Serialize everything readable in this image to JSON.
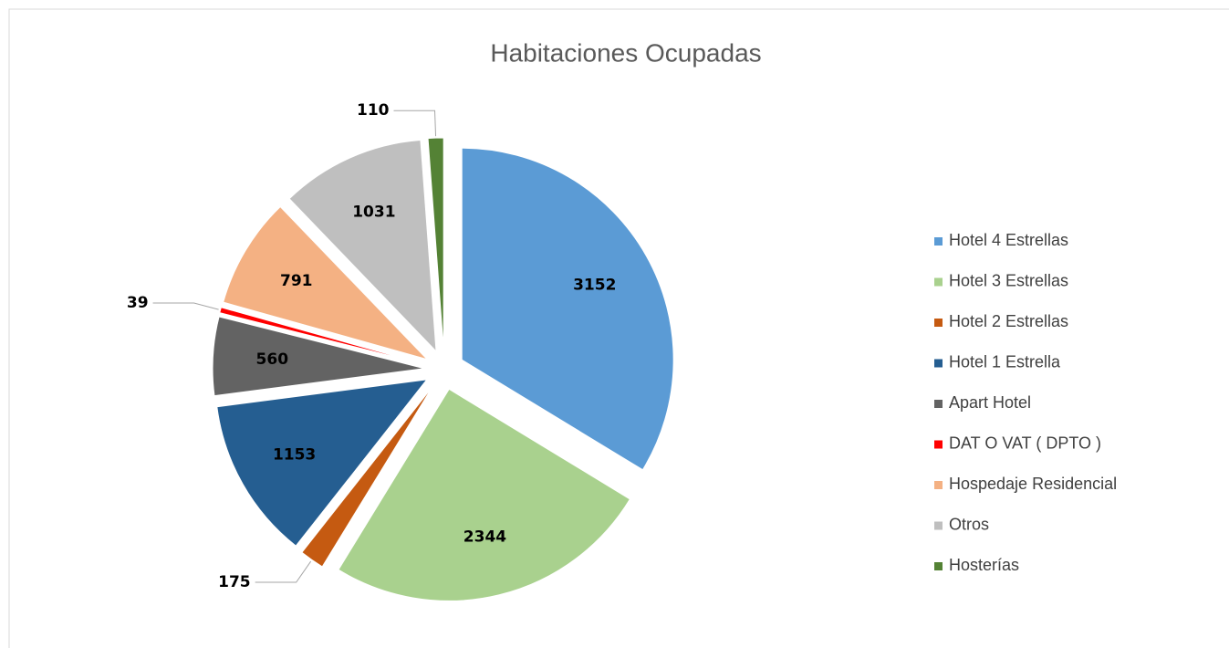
{
  "chart_data": {
    "type": "pie",
    "title": "Habitaciones Ocupadas",
    "categories": [
      "Hotel 4 Estrellas",
      "Hotel 3 Estrellas",
      "Hotel 2 Estrellas",
      "Hotel 1 Estrella",
      "Apart Hotel",
      "DAT O VAT ( DPTO )",
      "Hospedaje Residencial",
      "Otros",
      "Hosterías"
    ],
    "values": [
      3152,
      2344,
      175,
      1153,
      560,
      39,
      791,
      1031,
      110
    ],
    "colors": [
      "#5b9bd5",
      "#a9d18e",
      "#c55a11",
      "#255e91",
      "#636363",
      "#ff0000",
      "#f4b183",
      "#bfbfbf",
      "#548235"
    ],
    "legend": "right"
  }
}
